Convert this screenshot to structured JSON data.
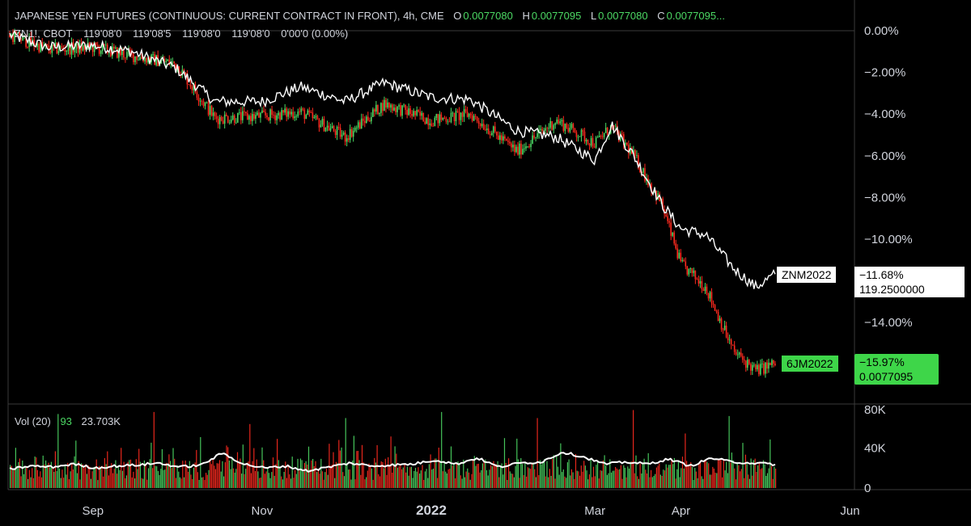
{
  "header": {
    "title": "JAPANESE YEN FUTURES (CONTINUOUS: CURRENT CONTRACT IN FRONT), 4h, CME",
    "o_label": "O",
    "o_value": "0.0077080",
    "h_label": "H",
    "h_value": "0.0077095",
    "l_label": "L",
    "l_value": "0.0077080",
    "c_label": "C",
    "c_value": "0.0077095...",
    "compare_symbol": "ZN1!, CBOT",
    "compare_o": "119'08'0",
    "compare_h": "119'08'5",
    "compare_l": "119'08'0",
    "compare_c": "119'08'0",
    "compare_change": "0'00'0 (0.00%)"
  },
  "volume_legend": {
    "label": "Vol (20)",
    "value1": "93",
    "value2": "23.703K"
  },
  "markers": {
    "znm": {
      "symbol": "ZNM2022",
      "pct": "−11.68%",
      "price": "119.2500000"
    },
    "sixj": {
      "symbol": "6JM2022",
      "pct": "−15.97%",
      "price": "0.0077095"
    }
  },
  "colors": {
    "background": "#000000",
    "up": "#4cd964",
    "down": "#ff2a1f",
    "compare_line": "#ffffff",
    "grid": "#3a3a3a",
    "axis_text": "#d1d4dc"
  },
  "chart_data": [
    {
      "type": "line",
      "title": "",
      "xlabel": "",
      "ylabel": "",
      "y_scale": "percent change",
      "ylim": [
        -17.2,
        0.9
      ],
      "x_tick_labels": [
        "Sep",
        "Nov",
        "2022",
        "Mar",
        "Apr",
        "Jun"
      ],
      "y_tick_labels": [
        "0.00%",
        "−2.00%",
        "−4.00%",
        "−6.00%",
        "−8.00%",
        "−10.00%",
        "−14.00%"
      ],
      "y_ticks": [
        0,
        -2,
        -4,
        -6,
        -8,
        -10,
        -14
      ],
      "grid": false,
      "x": [
        "2021-08-02",
        "2021-08-16",
        "2021-09-01",
        "2021-09-15",
        "2021-10-01",
        "2021-10-15",
        "2021-11-01",
        "2021-11-15",
        "2021-12-01",
        "2021-12-15",
        "2022-01-01",
        "2022-01-15",
        "2022-02-01",
        "2022-02-15",
        "2022-03-01",
        "2022-03-07",
        "2022-03-15",
        "2022-03-25",
        "2022-04-01",
        "2022-04-10",
        "2022-04-20",
        "2022-04-28",
        "2022-05-05"
      ],
      "series": [
        {
          "name": "ZNM2022",
          "values": [
            -0.2,
            -0.8,
            -0.7,
            -1.0,
            -1.8,
            -3.4,
            -3.4,
            -2.7,
            -3.4,
            -2.5,
            -3.2,
            -3.3,
            -4.8,
            -5.1,
            -6.2,
            -4.5,
            -6.0,
            -8.3,
            -9.5,
            -9.8,
            -11.4,
            -12.3,
            -11.68
          ]
        },
        {
          "name": "6JM2022",
          "values": [
            -0.2,
            -0.9,
            -0.8,
            -1.2,
            -1.6,
            -4.2,
            -4.1,
            -3.9,
            -5.1,
            -3.5,
            -4.3,
            -4.0,
            -5.8,
            -4.3,
            -5.4,
            -4.6,
            -6.0,
            -8.3,
            -11.2,
            -12.3,
            -15.4,
            -16.3,
            -15.97
          ]
        }
      ]
    },
    {
      "type": "bar",
      "title": "",
      "series_name": "Vol (20)",
      "ylim": [
        0,
        80000
      ],
      "y_tick_labels": [
        "80K",
        "40K",
        "0"
      ],
      "y_ticks": [
        80000,
        40000,
        0
      ],
      "ma_value": 23703,
      "last_value": 93,
      "ma_profile": [
        19000,
        22000,
        21000,
        24000,
        20000,
        22000,
        23000,
        25000,
        21000,
        23000,
        35000,
        24000,
        20000,
        22000,
        17000,
        21000,
        25000,
        22000,
        23000,
        24000,
        28000,
        24000,
        30000,
        21000,
        25000,
        26000,
        36000,
        31000,
        24000,
        26000,
        24000,
        29000,
        22000,
        30000,
        26000,
        25000,
        23703
      ],
      "max_spikes": [
        74000,
        76000,
        64000,
        70000,
        76000,
        70000,
        78000,
        72000
      ]
    }
  ]
}
